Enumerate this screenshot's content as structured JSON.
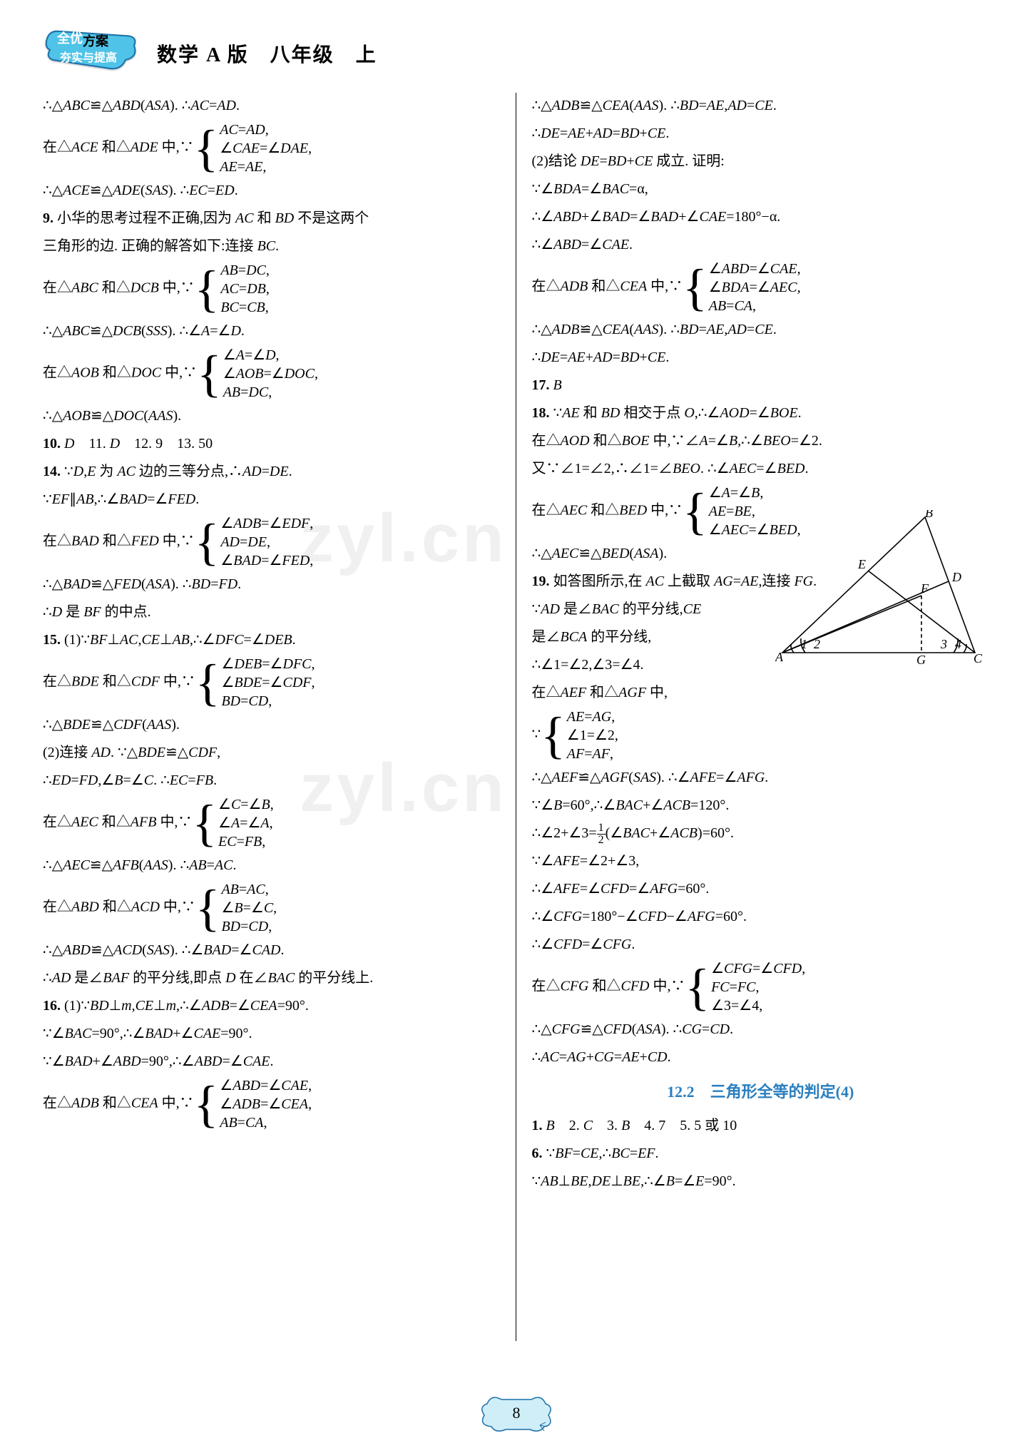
{
  "header": {
    "title": "数学 A 版　八年级　上"
  },
  "logo": {
    "line1": "全优",
    "line2": "方案",
    "line3": "夯实与提高",
    "fill": "#4fc3e8",
    "stroke": "#1b6fa8"
  },
  "watermark": {
    "text": "zyl.cn"
  },
  "page_number": "8",
  "section_heading": "12.2　三角形全等的判定(4)",
  "diagram": {
    "labels": [
      "A",
      "B",
      "C",
      "D",
      "E",
      "F",
      "G",
      "1",
      "2",
      "3",
      "4"
    ],
    "stroke": "#000",
    "dash": "5,4"
  },
  "left": [
    "∴△ABC≌△ABD(ASA). ∴AC=AD.",
    {
      "pre": "在△ACE 和△ADE 中,∵",
      "items": [
        "AC=AD,",
        "∠CAE=∠DAE,",
        "AE=AE,"
      ]
    },
    "∴△ACE≌△ADE(SAS). ∴EC=ED.",
    "9. 小华的思考过程不正确,因为 AC 和 BD 不是这两个",
    "三角形的边. 正确的解答如下:连接 BC.",
    {
      "pre": "在△ABC 和△DCB 中,∵",
      "items": [
        "AB=DC,",
        "AC=DB,",
        "BC=CB,"
      ]
    },
    "∴△ABC≌△DCB(SSS). ∴∠A=∠D.",
    {
      "pre": "在△AOB 和△DOC 中,∵",
      "items": [
        "∠A=∠D,",
        "∠AOB=∠DOC,",
        "AB=DC,"
      ]
    },
    "∴△AOB≌△DOC(AAS).",
    "10. D　11. D　12. 9　13. 50",
    "14. ∵D,E 为 AC 边的三等分点,∴AD=DE.",
    "∵EF∥AB,∴∠BAD=∠FED.",
    {
      "pre": "在△BAD 和△FED 中,∵",
      "items": [
        "∠ADB=∠EDF,",
        "AD=DE,",
        "∠BAD=∠FED,"
      ]
    },
    "∴△BAD≌△FED(ASA). ∴BD=FD.",
    "∴D 是 BF 的中点.",
    "15. (1)∵BF⊥AC,CE⊥AB,∴∠DFC=∠DEB.",
    {
      "pre": "在△BDE 和△CDF 中,∵",
      "items": [
        "∠DEB=∠DFC,",
        "∠BDE=∠CDF,",
        "BD=CD,"
      ]
    },
    "∴△BDE≌△CDF(AAS).",
    "(2)连接 AD. ∵△BDE≌△CDF,",
    "∴ED=FD,∠B=∠C. ∴EC=FB.",
    {
      "pre": "在△AEC 和△AFB 中,∵",
      "items": [
        "∠C=∠B,",
        "∠A=∠A,",
        "EC=FB,"
      ]
    },
    "∴△AEC≌△AFB(AAS). ∴AB=AC.",
    {
      "pre": "在△ABD 和△ACD 中,∵",
      "items": [
        "AB=AC,",
        "∠B=∠C,",
        "BD=CD,"
      ]
    },
    "∴△ABD≌△ACD(SAS). ∴∠BAD=∠CAD.",
    "∴AD 是∠BAF 的平分线,即点 D 在∠BAC 的平分线上.",
    "16. (1)∵BD⊥m,CE⊥m,∴∠ADB=∠CEA=90°.",
    "∵∠BAC=90°,∴∠BAD+∠CAE=90°.",
    "∵∠BAD+∠ABD=90°,∴∠ABD=∠CAE.",
    {
      "pre": "在△ADB 和△CEA 中,∵",
      "items": [
        "∠ABD=∠CAE,",
        "∠ADB=∠CEA,",
        "AB=CA,"
      ]
    }
  ],
  "right": [
    "∴△ADB≌△CEA(AAS). ∴BD=AE,AD=CE.",
    "∴DE=AE+AD=BD+CE.",
    "(2)结论 DE=BD+CE 成立. 证明:",
    "∵∠BDA=∠BAC=α,",
    "∴∠ABD+∠BAD=∠BAD+∠CAE=180°−α.",
    "∴∠ABD=∠CAE.",
    {
      "pre": "在△ADB 和△CEA 中,∵",
      "items": [
        "∠ABD=∠CAE,",
        "∠BDA=∠AEC,",
        "AB=CA,"
      ]
    },
    "∴△ADB≌△CEA(AAS). ∴BD=AE,AD=CE.",
    "∴DE=AE+AD=BD+CE.",
    "17. B",
    "18. ∵AE 和 BD 相交于点 O,∴∠AOD=∠BOE.",
    "在△AOD 和△BOE 中,∵∠A=∠B,∴∠BEO=∠2.",
    "又∵∠1=∠2,∴∠1=∠BEO. ∴∠AEC=∠BED.",
    {
      "pre": "在△AEC 和△BED 中,∵",
      "items": [
        "∠A=∠B,",
        "AE=BE,",
        "∠AEC=∠BED,"
      ]
    },
    "∴△AEC≌△BED(ASA).",
    "19. 如答图所示,在 AC 上截取 AG=AE,连接 FG.",
    "∵AD 是∠BAC 的平分线,CE",
    "是∠BCA 的平分线,",
    "∴∠1=∠2,∠3=∠4.",
    "在△AEF 和△AGF 中,",
    {
      "pre": "∵",
      "items": [
        "AE=AG,",
        "∠1=∠2,",
        "AF=AF,"
      ]
    },
    "∴△AEF≌△AGF(SAS). ∴∠AFE=∠AFG.",
    "∵∠B=60°,∴∠BAC+∠ACB=120°.",
    {
      "frac_line": true,
      "text_before": "∴∠2+∠3=",
      "num": "1",
      "den": "2",
      "text_after": "(∠BAC+∠ACB)=60°."
    },
    "∵∠AFE=∠2+∠3,",
    "∴∠AFE=∠CFD=∠AFG=60°.",
    "∴∠CFG=180°−∠CFD−∠AFG=60°.",
    "∴∠CFD=∠CFG.",
    {
      "pre": "在△CFG 和△CFD 中,∵",
      "items": [
        "∠CFG=∠CFD,",
        "FC=FC,",
        "∠3=∠4,"
      ]
    },
    "∴△CFG≌△CFD(ASA). ∴CG=CD.",
    "∴AC=AG+CG=AE+CD.",
    "SECTION_HEADING",
    "1. B　2. C　3. B　4. 7　5. 5 或 10",
    "6. ∵BF=CE,∴BC=EF.",
    "∵AB⊥BE,DE⊥BE,∴∠B=∠E=90°."
  ],
  "page_badge": {
    "fill": "#7ecde8",
    "stroke": "#1b6fa8"
  }
}
